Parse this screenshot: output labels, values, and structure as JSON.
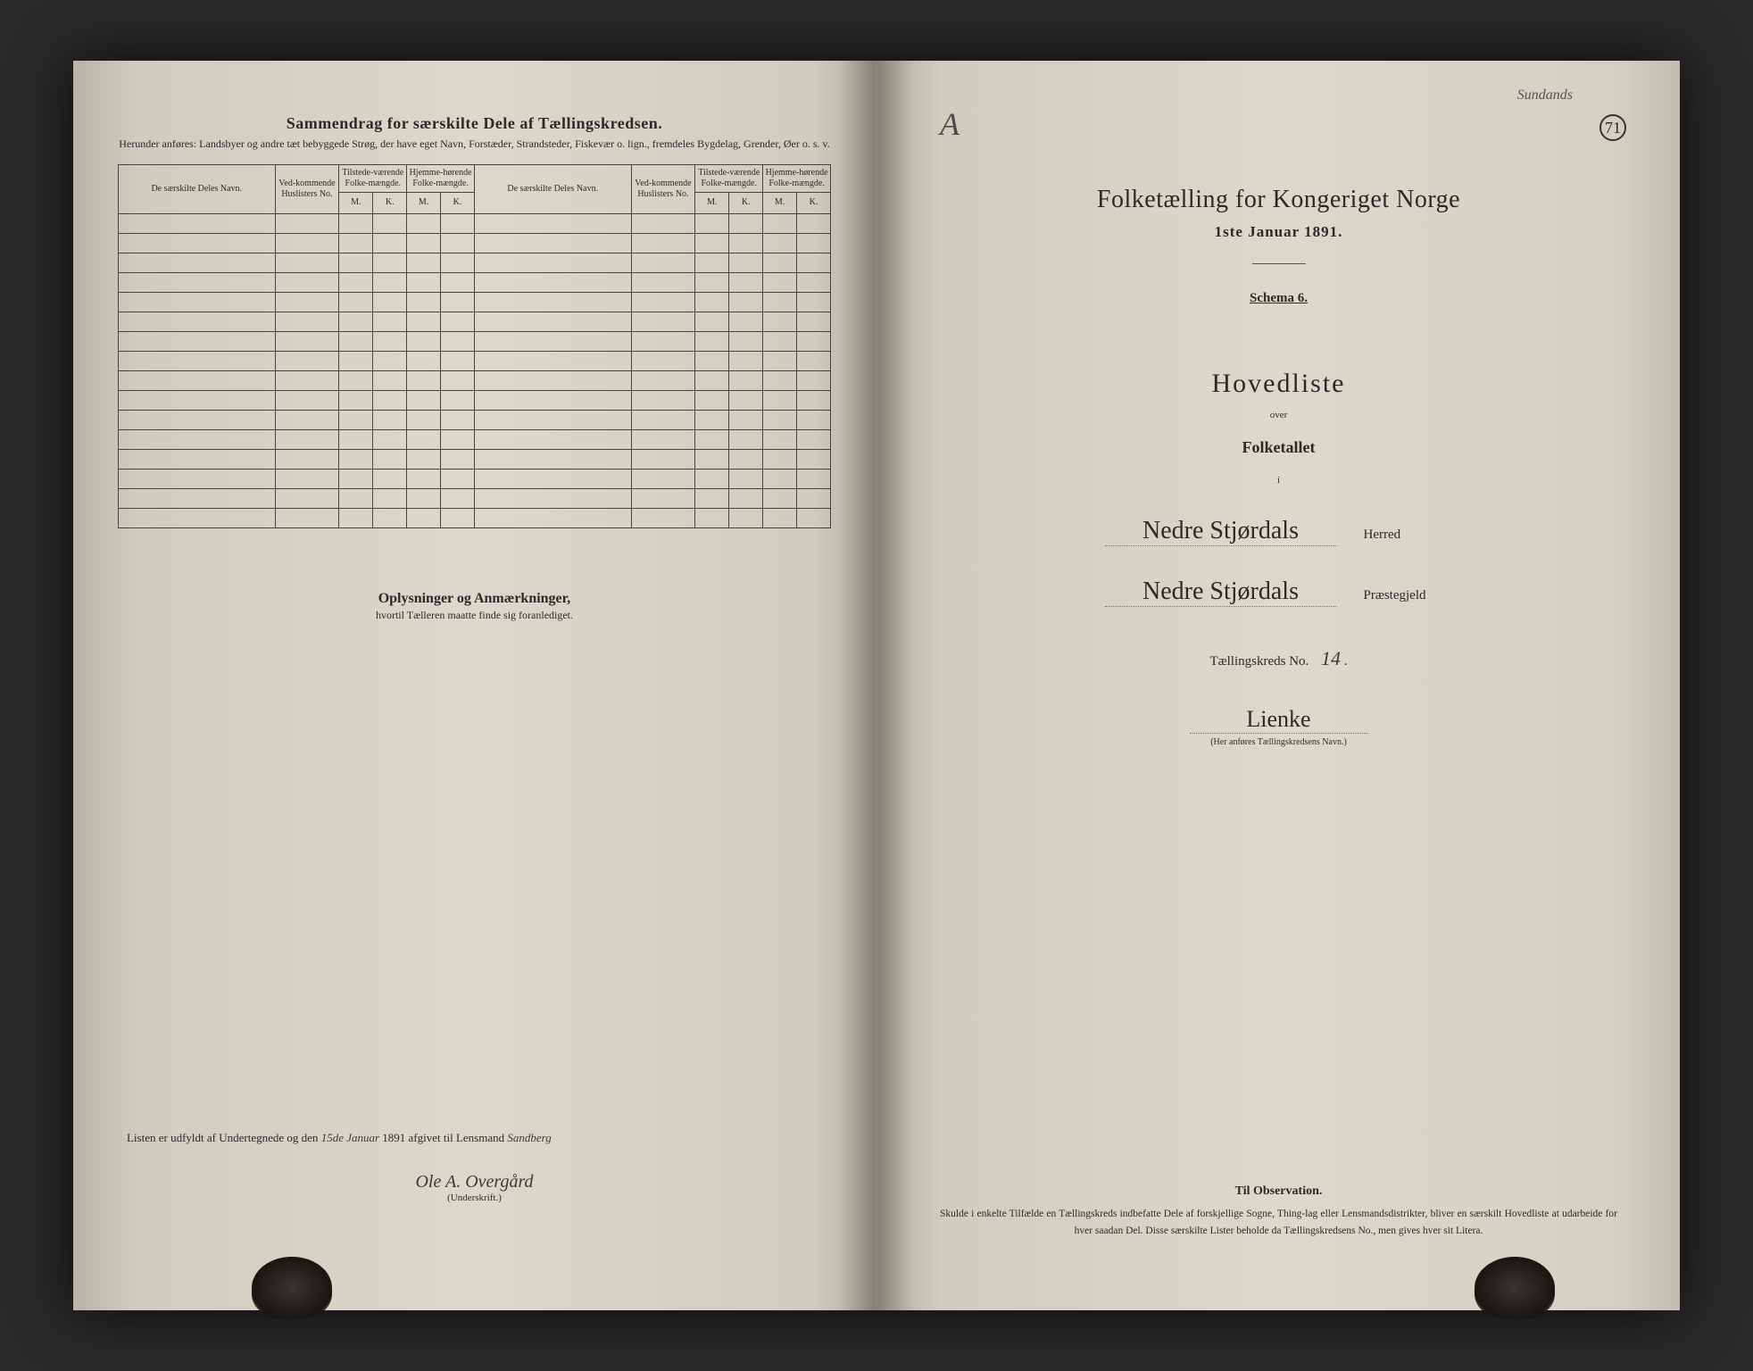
{
  "leftPage": {
    "headerTitle": "Sammendrag for særskilte Dele af Tællingskredsen.",
    "headerSubtitle": "Herunder anføres: Landsbyer og andre tæt bebyggede Strøg, der have eget Navn, Forstæder, Strandsteder, Fiskevær o. lign., fremdeles Bygdelag, Grender, Øer o. s. v.",
    "tableHeaders": {
      "name": "De særskilte Deles Navn.",
      "ved": "Ved-kommende Huslisters No.",
      "tilstede": "Tilstede-værende Folke-mængde.",
      "hjemme": "Hjemme-hørende Folke-mængde.",
      "m": "M.",
      "k": "K."
    },
    "numBlankRows": 16,
    "oplysningerTitle": "Oplysninger og Anmærkninger,",
    "oplysningerSub": "hvortil Tælleren maatte finde sig foranlediget.",
    "signaturePrefix": "Listen er udfyldt af Undertegnede og den",
    "signatureDate": "15de Januar",
    "signatureYear": "1891 afgivet til Lensmand",
    "lensmand": "Sandberg",
    "signatureName": "Ole A. Overgård",
    "underskrift": "(Underskrift.)"
  },
  "rightPage": {
    "markA": "A",
    "topNote": "Sundands",
    "pageNum": "71",
    "mainTitle": "Folketælling for Kongeriget Norge",
    "mainDate": "1ste Januar 1891.",
    "schema": "Schema 6.",
    "hovedliste": "Hovedliste",
    "over": "over",
    "folketallet": "Folketallet",
    "i": "i",
    "herred": "Nedre Stjørdals",
    "herredLabel": "Herred",
    "praestegjeld": "Nedre Stjørdals",
    "praestegjeldLabel": "Præstegjeld",
    "taellingLabel": "Tællingskreds No.",
    "taellingNo": "14",
    "kredsName": "Lienke",
    "kredsNote": "(Her anføres Tællingskredsens Navn.)",
    "obsTitle": "Til Observation.",
    "obsText": "Skulde i enkelte Tilfælde en Tællingskreds indbefatte Dele af forskjellige Sogne, Thing-lag eller Lensmandsdistrikter, bliver en særskilt Hovedliste at udarbeide for hver saadan Del. Disse særskilte Lister beholde da Tællingskredsens No., men gives hver sit Litera."
  }
}
